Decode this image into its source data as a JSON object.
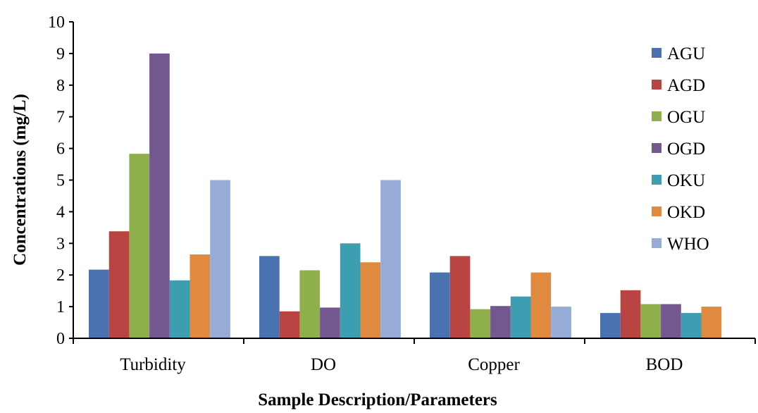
{
  "chart_data": {
    "type": "bar",
    "title": "",
    "xlabel": "Sample Description/Parameters",
    "ylabel": "Concentrations  (mg/L)",
    "ylim": [
      0,
      10
    ],
    "yticks": [
      0,
      1,
      2,
      3,
      4,
      5,
      6,
      7,
      8,
      9,
      10
    ],
    "grid": false,
    "legend_position": "right",
    "categories": [
      "Turbidity",
      "DO",
      "Copper",
      "BOD"
    ],
    "series": [
      {
        "name": "AGU",
        "color": "#4a72b0",
        "values": [
          2.17,
          2.6,
          2.08,
          0.8
        ]
      },
      {
        "name": "AGD",
        "color": "#b94543",
        "values": [
          3.38,
          0.85,
          2.6,
          1.52
        ]
      },
      {
        "name": "OGU",
        "color": "#8fae4c",
        "values": [
          5.83,
          2.15,
          0.92,
          1.08
        ]
      },
      {
        "name": "OGD",
        "color": "#73588f",
        "values": [
          9.0,
          0.97,
          1.02,
          1.08
        ]
      },
      {
        "name": "OKU",
        "color": "#3d9db1",
        "values": [
          1.83,
          3.0,
          1.32,
          0.8
        ]
      },
      {
        "name": "OKD",
        "color": "#e08a3f",
        "values": [
          2.65,
          2.4,
          2.08,
          1.0
        ]
      },
      {
        "name": "WHO",
        "color": "#96acd6",
        "values": [
          5.0,
          5.0,
          1.0,
          null
        ]
      }
    ]
  }
}
